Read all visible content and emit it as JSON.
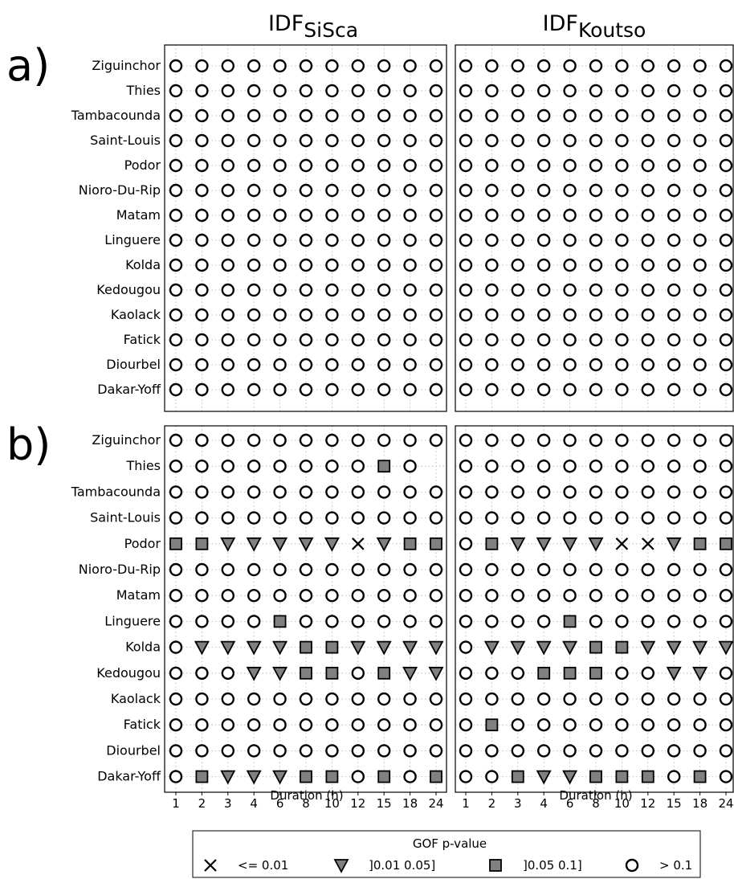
{
  "chart_data": {
    "type": "scatter",
    "column_titles": [
      {
        "main": "IDF",
        "sub": "SiSca"
      },
      {
        "main": "IDF",
        "sub": "Koutso"
      }
    ],
    "rows": [
      "Ziguinchor",
      "Thies",
      "Tambacounda",
      "Saint-Louis",
      "Podor",
      "Nioro-Du-Rip",
      "Matam",
      "Linguere",
      "Kolda",
      "Kedougou",
      "Kaolack",
      "Fatick",
      "Diourbel",
      "Dakar-Yoff"
    ],
    "durations": [
      "1",
      "2",
      "3",
      "4",
      "6",
      "8",
      "10",
      "12",
      "15",
      "18",
      "24"
    ],
    "xlabel": "Duration (h)",
    "legend": {
      "title": "GOF p-value",
      "entries": [
        {
          "code": "x",
          "label": "<= 0.01"
        },
        {
          "code": "t",
          "label": "]0.01 0.05]"
        },
        {
          "code": "s",
          "label": "]0.05 0.1]"
        },
        {
          "code": "o",
          "label": "> 0.1"
        }
      ]
    },
    "panels": [
      {
        "label": "a)",
        "subplots": [
          {
            "column": 0,
            "grid": [
              "ooooooooooo",
              "ooooooooooo",
              "ooooooooooo",
              "ooooooooooo",
              "ooooooooooo",
              "ooooooooooo",
              "ooooooooooo",
              "ooooooooooo",
              "ooooooooooo",
              "ooooooooooo",
              "ooooooooooo",
              "ooooooooooo",
              "ooooooooooo",
              "ooooooooooo"
            ]
          },
          {
            "column": 1,
            "grid": [
              "ooooooooooo",
              "ooooooooooo",
              "ooooooooooo",
              "ooooooooooo",
              "ooooooooooo",
              "ooooooooooo",
              "ooooooooooo",
              "ooooooooooo",
              "ooooooooooo",
              "ooooooooooo",
              "ooooooooooo",
              "ooooooooooo",
              "ooooooooooo",
              "ooooooooooo"
            ]
          }
        ]
      },
      {
        "label": "b)",
        "subplots": [
          {
            "column": 0,
            "grid": [
              "ooooooooooo",
              "ooooooooso",
              "ooooooooooo",
              "ooooooooooo",
              "sstttttxtss",
              "ooooooooooo",
              "ooooooooooo",
              "oooosoooooo",
              "ottttsstttt",
              "ooottssostt",
              "ooooooooooo",
              "ooooooooooo",
              "ooooooooooo",
              "ostttssosos"
            ]
          },
          {
            "column": 1,
            "grid": [
              "ooooooooooo",
              "ooooooooooo",
              "ooooooooooo",
              "ooooooooooo",
              "osttttxxtss",
              "ooooooooooo",
              "ooooooooooo",
              "oooosoooooo",
              "ottttsstttt",
              "ooosssootto",
              "ooooooooooo",
              "osooooooooo",
              "ooooooooooo",
              "oosttsssoso"
            ]
          }
        ]
      }
    ],
    "colors": {
      "marker_fill": "#808080",
      "circle_fill": "#ffffff",
      "grid": "#b0b0b0"
    }
  }
}
